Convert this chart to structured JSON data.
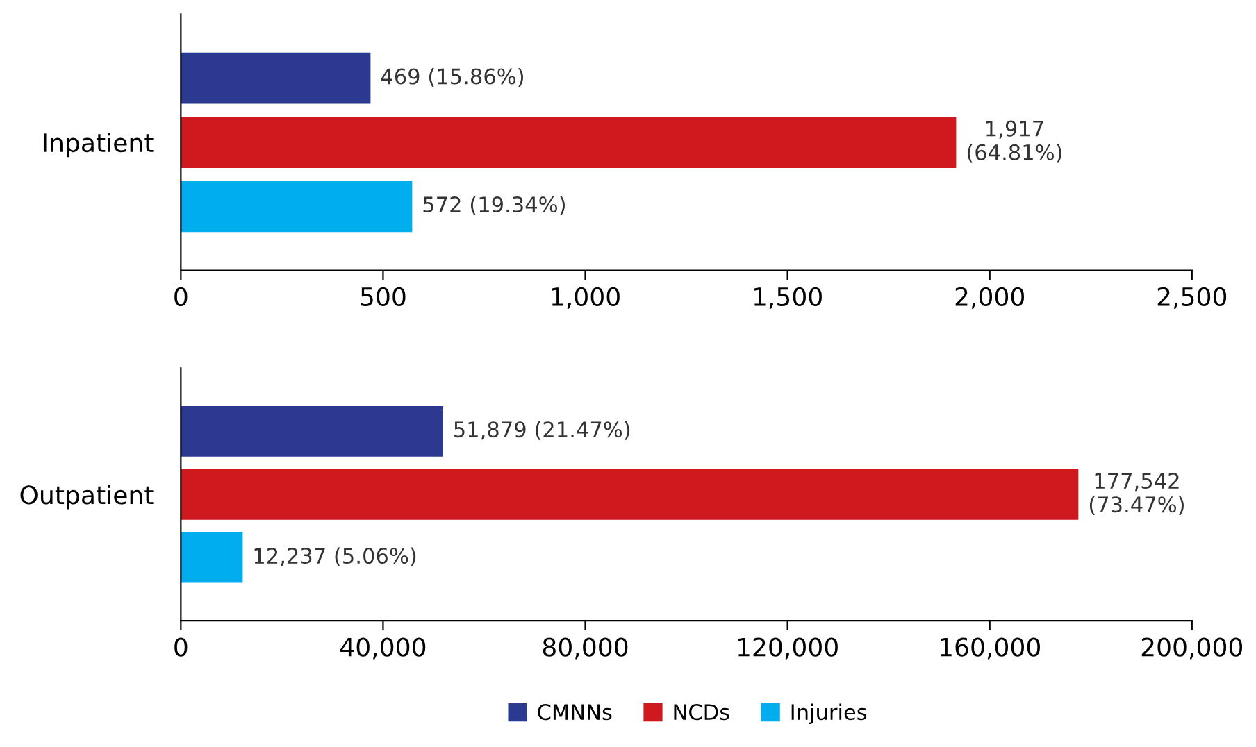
{
  "chart_data": [
    {
      "type": "bar",
      "orientation": "horizontal",
      "categories": [
        "Inpatient"
      ],
      "xlim": [
        0,
        2500
      ],
      "xticks": [
        0,
        500,
        {
          "value": 1000,
          "label": "1,000"
        },
        {
          "value": 1500,
          "label": "1,500"
        },
        {
          "value": 2000,
          "label": "2,000"
        },
        {
          "value": 2500,
          "label": "2,500"
        }
      ],
      "grid": false,
      "legend": "bottom",
      "series": [
        {
          "name": "CMNNs",
          "color": "#2b3990",
          "values": [
            469
          ],
          "value_labels": [
            "469 (15.86%)"
          ]
        },
        {
          "name": "NCDs",
          "color": "#d0191f",
          "values": [
            1917
          ],
          "value_labels": [
            "1,917\n(64.81%)"
          ]
        },
        {
          "name": "Injuries",
          "color": "#00aeef",
          "values": [
            572
          ],
          "value_labels": [
            "572 (19.34%)"
          ]
        }
      ]
    },
    {
      "type": "bar",
      "orientation": "horizontal",
      "categories": [
        "Outpatient"
      ],
      "xlim": [
        0,
        200000
      ],
      "xticks": [
        0,
        {
          "value": 40000,
          "label": "40,000"
        },
        {
          "value": 80000,
          "label": "80,000"
        },
        {
          "value": 120000,
          "label": "120,000"
        },
        {
          "value": 160000,
          "label": "160,000"
        },
        {
          "value": 200000,
          "label": "200,000"
        }
      ],
      "grid": false,
      "series": [
        {
          "color": "#2b3990",
          "values": [
            51879
          ],
          "value_labels": [
            "51,879 (21.47%)"
          ]
        },
        {
          "color": "#d0191f",
          "values": [
            177542
          ],
          "value_labels": [
            "177,542\n(73.47%)"
          ]
        },
        {
          "color": "#00aeef",
          "values": [
            12237
          ],
          "value_labels": [
            "12,237 (5.06%)"
          ]
        }
      ]
    }
  ]
}
